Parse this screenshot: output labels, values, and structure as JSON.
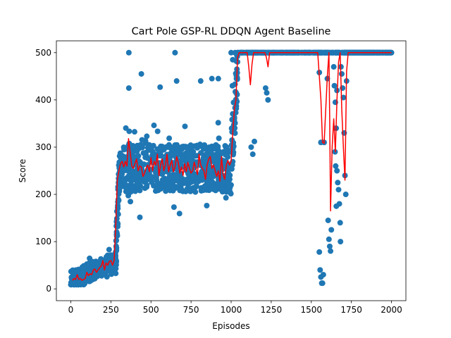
{
  "chart_data": {
    "type": "scatter",
    "title": "Cart Pole GSP-RL DDQN Agent Baseline",
    "xlabel": "Episodes",
    "ylabel": "Score",
    "xlim": [
      -90,
      2090
    ],
    "ylim": [
      -25,
      525
    ],
    "xticks": [
      0,
      250,
      500,
      750,
      1000,
      1250,
      1500,
      1750,
      2000
    ],
    "yticks": [
      0,
      100,
      200,
      300,
      400,
      500
    ],
    "grid": false,
    "legend": "none",
    "colors": {
      "scatter": "#1f77b4",
      "line": "#ff0000"
    },
    "series": [
      {
        "kind": "scatter",
        "segments": [
          {
            "x0": 0,
            "x1": 280,
            "y0": 18,
            "y1": 60,
            "spread": 20,
            "n": 280
          },
          {
            "x0": 280,
            "x1": 300,
            "y0": 60,
            "y1": 230,
            "spread": 40,
            "n": 40
          },
          {
            "x0": 300,
            "x1": 1000,
            "y0": 255,
            "y1": 255,
            "spread": 50,
            "n": 700
          },
          {
            "x0": 1000,
            "x1": 1040,
            "y0": 280,
            "y1": 460,
            "spread": 60,
            "n": 50
          },
          {
            "x0": 1040,
            "x1": 1560,
            "y0": 500,
            "y1": 500,
            "spread": 0,
            "n": 300
          },
          {
            "x0": 1560,
            "x1": 1700,
            "y0": 500,
            "y1": 500,
            "spread": 0,
            "n": 60
          },
          {
            "x0": 1700,
            "x1": 2000,
            "y0": 500,
            "y1": 500,
            "spread": 0,
            "n": 250
          }
        ],
        "extra_points": [
          [
            362,
            500
          ],
          [
            650,
            500
          ],
          [
            440,
            455
          ],
          [
            557,
            427
          ],
          [
            362,
            425
          ],
          [
            660,
            440
          ],
          [
            810,
            440
          ],
          [
            880,
            445
          ],
          [
            920,
            445
          ],
          [
            1008,
            430
          ],
          [
            1020,
            360
          ],
          [
            1125,
            300
          ],
          [
            1135,
            285
          ],
          [
            1145,
            312
          ],
          [
            1215,
            425
          ],
          [
            1222,
            415
          ],
          [
            1230,
            400
          ],
          [
            1010,
            485
          ],
          [
            1000,
            500
          ],
          [
            1025,
            500
          ],
          [
            1550,
            78
          ],
          [
            1555,
            40
          ],
          [
            1560,
            25
          ],
          [
            1565,
            12
          ],
          [
            1570,
            12
          ],
          [
            1575,
            30
          ],
          [
            1550,
            458
          ],
          [
            1600,
            445
          ],
          [
            1605,
            145
          ],
          [
            1610,
            105
          ],
          [
            1615,
            90
          ],
          [
            1620,
            80
          ],
          [
            1625,
            125
          ],
          [
            1580,
            310
          ],
          [
            1650,
            395
          ],
          [
            1655,
            340
          ],
          [
            1660,
            250
          ],
          [
            1665,
            225
          ],
          [
            1670,
            210
          ],
          [
            1675,
            180
          ],
          [
            1680,
            140
          ],
          [
            1682,
            100
          ],
          [
            1685,
            470
          ],
          [
            1690,
            455
          ],
          [
            1695,
            425
          ],
          [
            1700,
            405
          ],
          [
            1705,
            330
          ],
          [
            1710,
            240
          ],
          [
            1715,
            200
          ],
          [
            1720,
            440
          ],
          [
            1560,
            310
          ],
          [
            1640,
            470
          ],
          [
            1644,
            430
          ],
          [
            1648,
            290
          ],
          [
            1652,
            260
          ],
          [
            1656,
            175
          ],
          [
            1660,
            420
          ]
        ]
      },
      {
        "kind": "line",
        "name": "",
        "points": [
          [
            10,
            18
          ],
          [
            20,
            22
          ],
          [
            30,
            20
          ],
          [
            40,
            30
          ],
          [
            50,
            20
          ],
          [
            60,
            22
          ],
          [
            70,
            18
          ],
          [
            80,
            20
          ],
          [
            90,
            22
          ],
          [
            100,
            35
          ],
          [
            110,
            28
          ],
          [
            120,
            32
          ],
          [
            130,
            30
          ],
          [
            140,
            40
          ],
          [
            150,
            42
          ],
          [
            160,
            35
          ],
          [
            170,
            40
          ],
          [
            180,
            45
          ],
          [
            190,
            48
          ],
          [
            200,
            60
          ],
          [
            210,
            40
          ],
          [
            220,
            55
          ],
          [
            230,
            50
          ],
          [
            240,
            58
          ],
          [
            250,
            60
          ],
          [
            260,
            50
          ],
          [
            270,
            60
          ],
          [
            280,
            130
          ],
          [
            290,
            230
          ],
          [
            300,
            250
          ],
          [
            310,
            265
          ],
          [
            320,
            270
          ],
          [
            330,
            258
          ],
          [
            340,
            270
          ],
          [
            350,
            260
          ],
          [
            360,
            318
          ],
          [
            370,
            290
          ],
          [
            380,
            260
          ],
          [
            390,
            255
          ],
          [
            400,
            265
          ],
          [
            410,
            275
          ],
          [
            420,
            250
          ],
          [
            430,
            260
          ],
          [
            440,
            258
          ],
          [
            450,
            238
          ],
          [
            460,
            245
          ],
          [
            470,
            256
          ],
          [
            480,
            262
          ],
          [
            490,
            248
          ],
          [
            500,
            278
          ],
          [
            510,
            250
          ],
          [
            520,
            270
          ],
          [
            530,
            262
          ],
          [
            540,
            285
          ],
          [
            550,
            240
          ],
          [
            560,
            262
          ],
          [
            570,
            275
          ],
          [
            580,
            250
          ],
          [
            590,
            262
          ],
          [
            600,
            285
          ],
          [
            610,
            248
          ],
          [
            620,
            262
          ],
          [
            630,
            272
          ],
          [
            640,
            248
          ],
          [
            650,
            258
          ],
          [
            660,
            280
          ],
          [
            670,
            268
          ],
          [
            680,
            245
          ],
          [
            690,
            258
          ],
          [
            700,
            240
          ],
          [
            710,
            265
          ],
          [
            720,
            248
          ],
          [
            730,
            268
          ],
          [
            740,
            255
          ],
          [
            750,
            245
          ],
          [
            760,
            250
          ],
          [
            770,
            268
          ],
          [
            780,
            255
          ],
          [
            790,
            242
          ],
          [
            800,
            285
          ],
          [
            810,
            262
          ],
          [
            820,
            255
          ],
          [
            830,
            250
          ],
          [
            840,
            232
          ],
          [
            850,
            262
          ],
          [
            860,
            275
          ],
          [
            870,
            280
          ],
          [
            880,
            255
          ],
          [
            890,
            262
          ],
          [
            900,
            250
          ],
          [
            910,
            238
          ],
          [
            920,
            250
          ],
          [
            930,
            228
          ],
          [
            940,
            280
          ],
          [
            950,
            242
          ],
          [
            960,
            232
          ],
          [
            970,
            262
          ],
          [
            980,
            272
          ],
          [
            990,
            262
          ],
          [
            1000,
            270
          ],
          [
            1010,
            330
          ],
          [
            1020,
            380
          ],
          [
            1030,
            400
          ],
          [
            1040,
            490
          ],
          [
            1050,
            500
          ],
          [
            1060,
            500
          ],
          [
            1070,
            500
          ],
          [
            1080,
            500
          ],
          [
            1090,
            500
          ],
          [
            1100,
            500
          ],
          [
            1110,
            470
          ],
          [
            1120,
            432
          ],
          [
            1130,
            475
          ],
          [
            1140,
            500
          ],
          [
            1150,
            500
          ],
          [
            1160,
            500
          ],
          [
            1170,
            500
          ],
          [
            1180,
            500
          ],
          [
            1190,
            500
          ],
          [
            1200,
            500
          ],
          [
            1210,
            500
          ],
          [
            1220,
            490
          ],
          [
            1230,
            470
          ],
          [
            1240,
            500
          ],
          [
            1250,
            500
          ],
          [
            1300,
            500
          ],
          [
            1350,
            500
          ],
          [
            1400,
            500
          ],
          [
            1450,
            500
          ],
          [
            1500,
            500
          ],
          [
            1540,
            500
          ],
          [
            1550,
            450
          ],
          [
            1560,
            400
          ],
          [
            1570,
            310
          ],
          [
            1580,
            308
          ],
          [
            1590,
            380
          ],
          [
            1600,
            450
          ],
          [
            1610,
            500
          ],
          [
            1615,
            350
          ],
          [
            1620,
            165
          ],
          [
            1630,
            300
          ],
          [
            1640,
            360
          ],
          [
            1650,
            290
          ],
          [
            1660,
            400
          ],
          [
            1670,
            480
          ],
          [
            1680,
            500
          ],
          [
            1690,
            380
          ],
          [
            1700,
            300
          ],
          [
            1710,
            230
          ],
          [
            1720,
            460
          ],
          [
            1730,
            500
          ],
          [
            1750,
            500
          ],
          [
            1800,
            500
          ],
          [
            1850,
            500
          ],
          [
            1900,
            500
          ],
          [
            1950,
            500
          ],
          [
            2000,
            500
          ]
        ]
      }
    ]
  }
}
